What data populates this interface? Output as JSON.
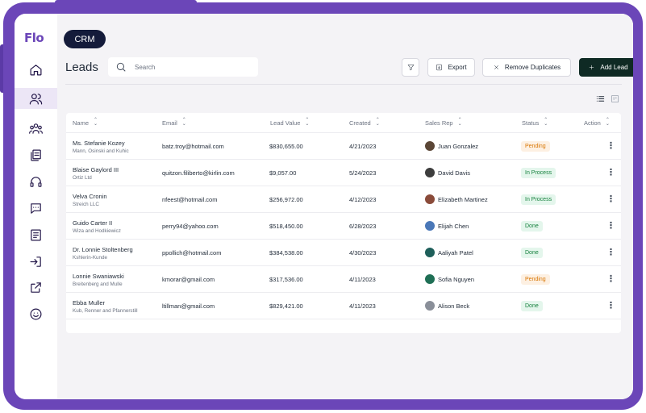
{
  "app": {
    "logo": "Flo",
    "section": "CRM"
  },
  "page": {
    "title": "Leads"
  },
  "search": {
    "placeholder": "Search"
  },
  "toolbar": {
    "export_label": "Export",
    "remove_duplicates_label": "Remove Duplicates",
    "add_lead_label": "Add Lead"
  },
  "sidebar": {
    "items": [
      {
        "icon": "home-icon",
        "active": false
      },
      {
        "icon": "user-icon",
        "active": true
      },
      {
        "icon": "team-icon",
        "active": false
      },
      {
        "icon": "documents-icon",
        "active": false
      },
      {
        "icon": "headset-icon",
        "active": false
      },
      {
        "icon": "chat-icon",
        "active": false
      },
      {
        "icon": "list-icon",
        "active": false
      },
      {
        "icon": "login-icon",
        "active": false
      },
      {
        "icon": "external-link-icon",
        "active": false
      },
      {
        "icon": "smile-icon",
        "active": false
      }
    ]
  },
  "table": {
    "columns": [
      "Name",
      "Email",
      "Lead Value",
      "Created",
      "Sales Rep",
      "Status",
      "Action"
    ],
    "rows": [
      {
        "name": "Ms. Stefanie Kozey",
        "company": "Mann, Osinski and Kuhic",
        "email": "batz.troy@hotmail.com",
        "value": "$830,655.00",
        "created": "4/21/2023",
        "rep": "Juan Gonzalez",
        "rep_color": "#5b4636",
        "status": "Pending",
        "status_type": "pending"
      },
      {
        "name": "Blaise Gaylord III",
        "company": "Ortiz Ltd",
        "email": "quitzon.filiberto@kirlin.com",
        "value": "$9,057.00",
        "created": "5/24/2023",
        "rep": "David Davis",
        "rep_color": "#3d3d3d",
        "status": "In Process",
        "status_type": "process"
      },
      {
        "name": "Velva Cronin",
        "company": "Streich LLC",
        "email": "nfeest@hotmail.com",
        "value": "$256,972.00",
        "created": "4/12/2023",
        "rep": "Elizabeth Martinez",
        "rep_color": "#8a4b3a",
        "status": "In Process",
        "status_type": "process"
      },
      {
        "name": "Guido Carter II",
        "company": "Wiza and Hodkiewicz",
        "email": "perry94@yahoo.com",
        "value": "$518,450.00",
        "created": "6/28/2023",
        "rep": "Elijah Chen",
        "rep_color": "#4a78b8",
        "status": "Done",
        "status_type": "done"
      },
      {
        "name": "Dr. Lonnie Stoltenberg",
        "company": "Kshlerin-Kunde",
        "email": "ppollich@hotmail.com",
        "value": "$384,538.00",
        "created": "4/30/2023",
        "rep": "Aaliyah Patel",
        "rep_color": "#1e5f5a",
        "status": "Done",
        "status_type": "done"
      },
      {
        "name": "Lonnie Swaniawski",
        "company": "Breitenberg and Mulle",
        "email": "kmorar@gmail.com",
        "value": "$317,536.00",
        "created": "4/11/2023",
        "rep": "Sofia Nguyen",
        "rep_color": "#1f6f55",
        "status": "Pending",
        "status_type": "pending"
      },
      {
        "name": "Ebba Muller",
        "company": "Kub, Renner and Pfannerstill",
        "email": "ltillman@gmail.com",
        "value": "$829,421.00",
        "created": "4/11/2023",
        "rep": "Alison Beck",
        "rep_color": "#8a8f99",
        "status": "Done",
        "status_type": "done"
      }
    ]
  },
  "colors": {
    "brand": "#6b46b8",
    "primary_button": "#0f2a24",
    "pending": "#d97706",
    "done": "#15803d"
  }
}
